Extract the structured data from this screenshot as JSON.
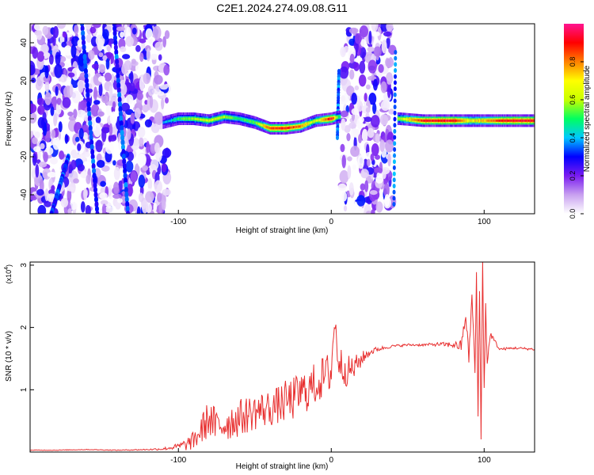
{
  "title": "C2E1.2024.274.09.08.G11",
  "chart_data": [
    {
      "type": "heatmap",
      "xlabel": "Height of straight line (km)",
      "ylabel": "Frequency (Hz)",
      "xlim": [
        -197,
        133
      ],
      "ylim": [
        -50,
        50
      ],
      "xticks": [
        -100,
        0,
        100
      ],
      "yticks": [
        -40,
        -20,
        0,
        20,
        40
      ],
      "colorbar": {
        "label": "Normalized spectral amplitude",
        "ticks": [
          0.0,
          0.2,
          0.4,
          0.6,
          0.8
        ],
        "range": [
          0,
          1
        ],
        "colors": [
          "#ffffff",
          "#c8a0f0",
          "#7a1cf0",
          "#0000ff",
          "#00c8ff",
          "#00ff60",
          "#c8ff00",
          "#ffff00",
          "#ff8000",
          "#ff0000",
          "#ff1490"
        ]
      },
      "noise_regions_km": [
        [
          -197,
          -107
        ],
        [
          7,
          40
        ]
      ],
      "ridge": {
        "x": [
          -110,
          -100,
          -90,
          -80,
          -70,
          -60,
          -50,
          -40,
          -30,
          -20,
          -10,
          0,
          5,
          45,
          60,
          80,
          90,
          100,
          110,
          120,
          133
        ],
        "y": [
          -2,
          0,
          0,
          -1,
          1,
          0,
          -2,
          -5,
          -5,
          -4,
          -1,
          0,
          1,
          0,
          -1,
          -1,
          -1,
          -1,
          -1,
          -1,
          -1
        ],
        "amplitude": [
          0.35,
          0.5,
          0.6,
          0.65,
          0.6,
          0.5,
          0.55,
          0.85,
          0.9,
          0.8,
          0.6,
          0.95,
          0.5,
          0.6,
          0.9,
          0.92,
          0.7,
          0.75,
          0.9,
          0.92,
          0.92
        ]
      }
    },
    {
      "type": "line",
      "xlabel": "Height of straight line (km)",
      "ylabel": "SNR (10 * v/v)",
      "yscale_note": "(x10",
      "yscale_exp": "4",
      "xlim": [
        -197,
        133
      ],
      "ylim": [
        0,
        3.05
      ],
      "xticks": [
        -100,
        0,
        100
      ],
      "yticks": [
        1,
        2,
        3
      ],
      "color": "#e83030",
      "series": [
        {
          "x": [
            -197,
            -180,
            -160,
            -140,
            -120,
            -110,
            -100,
            -95,
            -90,
            -85,
            -80,
            -75,
            -70,
            -65,
            -60,
            -55,
            -50,
            -45,
            -40,
            -35,
            -30,
            -25,
            -20,
            -15,
            -10,
            -5,
            0,
            2,
            5,
            10,
            15,
            20,
            25,
            30,
            40,
            50,
            60,
            70,
            80,
            85,
            88,
            90,
            92,
            94,
            95,
            96,
            97,
            98,
            99,
            100,
            101,
            102,
            104,
            110,
            120,
            133
          ],
          "y": [
            0.03,
            0.03,
            0.04,
            0.03,
            0.04,
            0.05,
            0.09,
            0.12,
            0.18,
            0.35,
            0.55,
            0.4,
            0.45,
            0.5,
            0.55,
            0.6,
            0.65,
            0.68,
            0.7,
            0.75,
            0.8,
            0.85,
            0.95,
            1.0,
            1.1,
            1.2,
            1.3,
            2.1,
            1.45,
            1.3,
            1.35,
            1.5,
            1.6,
            1.65,
            1.7,
            1.72,
            1.72,
            1.73,
            1.72,
            1.7,
            2.2,
            1.5,
            2.5,
            1.3,
            2.8,
            0.6,
            2.6,
            0.3,
            3.05,
            1.0,
            2.4,
            1.4,
            1.9,
            1.65,
            1.67,
            1.65
          ],
          "jitter": [
            0.005,
            0.005,
            0.005,
            0.005,
            0.01,
            0.02,
            0.05,
            0.1,
            0.15,
            0.25,
            0.3,
            0.3,
            0.3,
            0.3,
            0.3,
            0.3,
            0.3,
            0.3,
            0.3,
            0.3,
            0.35,
            0.35,
            0.35,
            0.35,
            0.35,
            0.35,
            0.35,
            0.3,
            0.3,
            0.25,
            0.2,
            0.12,
            0.06,
            0.04,
            0.02,
            0.02,
            0.02,
            0.03,
            0.05,
            0.1,
            0.1,
            0.1,
            0.1,
            0.1,
            0.1,
            0.1,
            0.1,
            0.1,
            0.1,
            0.1,
            0.1,
            0.08,
            0.05,
            0.02,
            0.02,
            0.02
          ]
        }
      ]
    }
  ]
}
